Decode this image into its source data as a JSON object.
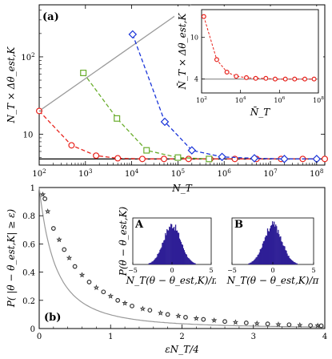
{
  "chart_data": [
    {
      "panel_label": "(a)",
      "type": "line",
      "xscale": "log",
      "yscale": "log",
      "xlabel": "N_T",
      "ylabel": "N_T × Δθ_est,K",
      "xlim": [
        100,
        150000000
      ],
      "ylim": [
        4,
        470
      ],
      "x_ticks": [
        {
          "value": 100,
          "base": "10",
          "exp": "2"
        },
        {
          "value": 1000,
          "base": "10",
          "exp": "3"
        },
        {
          "value": 10000,
          "base": "10",
          "exp": "4"
        },
        {
          "value": 100000,
          "base": "10",
          "exp": "5"
        },
        {
          "value": 1000000,
          "base": "10",
          "exp": "6"
        },
        {
          "value": 10000000,
          "base": "10",
          "exp": "7"
        },
        {
          "value": 100000000,
          "base": "10",
          "exp": "8"
        }
      ],
      "y_ticks": [
        {
          "value": 10,
          "base": "10",
          "exp": ""
        },
        {
          "value": 100,
          "base": "10",
          "exp": "2"
        }
      ],
      "reference_lines": [
        {
          "kind": "horizontal",
          "y": 4.8,
          "color": "#000000"
        },
        {
          "kind": "diagonal",
          "points": [
            [
              100,
              20
            ],
            [
              190000,
              470
            ]
          ],
          "color": "#9a9a9a"
        }
      ],
      "series": [
        {
          "color": "#e8221c",
          "marker": "circle",
          "x": [
            100,
            500,
            1700,
            5000,
            17000,
            50000,
            170000,
            500000,
            1700000,
            5000000,
            17000000,
            50000000,
            150000000
          ],
          "y": [
            20,
            7.2,
            5.3,
            4.9,
            4.8,
            4.8,
            4.8,
            4.8,
            4.8,
            4.8,
            4.8,
            4.8,
            4.8
          ]
        },
        {
          "color": "#6aad2d",
          "marker": "square",
          "x": [
            900,
            4800,
            21000,
            100000,
            470000
          ],
          "y": [
            62,
            16,
            6.2,
            5.0,
            4.8
          ]
        },
        {
          "color": "#1a35d9",
          "marker": "diamond",
          "x": [
            10500,
            52000,
            200000,
            900000,
            4500000,
            20000000,
            100000000
          ],
          "y": [
            195,
            14.5,
            6.2,
            5.1,
            4.9,
            4.8,
            4.8
          ]
        }
      ]
    },
    {
      "panel_label": "inset",
      "type": "line",
      "xscale": "log",
      "yscale": "linear",
      "xlabel": "N̄_T",
      "ylabel": "N̄_T × Δθ_est,K",
      "xlim": [
        100,
        100000000
      ],
      "ylim": [
        2,
        14
      ],
      "x_ticks": [
        {
          "value": 100,
          "base": "10",
          "exp": "2"
        },
        {
          "value": 10000,
          "base": "10",
          "exp": "4"
        },
        {
          "value": 1000000,
          "base": "10",
          "exp": "6"
        },
        {
          "value": 100000000,
          "base": "10",
          "exp": "8"
        }
      ],
      "y_ticks": [
        {
          "value": 4,
          "label": "4"
        },
        {
          "value": 10,
          "label": "10"
        }
      ],
      "reference_lines": [
        {
          "kind": "horizontal",
          "y": 4,
          "color": "#888888"
        }
      ],
      "series": [
        {
          "color": "#e8221c",
          "marker": "circle",
          "x": [
            130,
            600,
            2000,
            6000,
            20000,
            60000,
            200000,
            600000,
            2000000,
            6000000,
            20000000,
            60000000
          ],
          "y": [
            13,
            6.8,
            5.0,
            4.4,
            4.2,
            4.1,
            4.1,
            4.0,
            4.0,
            4.0,
            4.0,
            4.0
          ]
        }
      ]
    },
    {
      "panel_label": "(b)",
      "type": "scatter",
      "xlabel": "εN_T/4",
      "ylabel": "P( |θ − θ_est,K| ≥ ε)",
      "xlim": [
        0,
        4
      ],
      "ylim": [
        0,
        1
      ],
      "x_ticks": [
        "0",
        "1",
        "2",
        "3",
        "4"
      ],
      "y_ticks": [
        "0",
        "0.2",
        "0.4",
        "0.6",
        "0.8",
        "1"
      ],
      "fit_curve": {
        "color": "#999999",
        "form": "1/(1+2.2x)^2"
      },
      "series": [
        {
          "marker": "circle",
          "x": [
            0.08,
            0.2,
            0.35,
            0.5,
            0.7,
            0.9,
            1.1,
            1.3,
            1.55,
            1.8,
            2.05,
            2.3,
            2.6,
            2.9,
            3.2,
            3.5,
            3.8,
            3.95
          ],
          "y": [
            0.92,
            0.71,
            0.56,
            0.44,
            0.33,
            0.26,
            0.2,
            0.16,
            0.13,
            0.1,
            0.08,
            0.065,
            0.05,
            0.04,
            0.033,
            0.027,
            0.022,
            0.02
          ]
        },
        {
          "marker": "star",
          "x": [
            0.05,
            0.12,
            0.28,
            0.42,
            0.6,
            0.8,
            1.0,
            1.2,
            1.45,
            1.7,
            1.95,
            2.2,
            2.45,
            2.75,
            3.05,
            3.35,
            3.65,
            3.9
          ],
          "y": [
            0.95,
            0.83,
            0.63,
            0.5,
            0.38,
            0.29,
            0.23,
            0.18,
            0.14,
            0.11,
            0.09,
            0.072,
            0.058,
            0.045,
            0.036,
            0.029,
            0.024,
            0.021
          ]
        }
      ]
    },
    {
      "panel_label": "A",
      "type": "histogram",
      "color": "#2e1f96",
      "xlabel": "N_T(θ − θ_est,K)/π",
      "ylabel": "P(θ − θ_est,K)",
      "xlim": [
        -5,
        5
      ],
      "x_ticks": [
        "−5",
        "0",
        "5"
      ],
      "center": 0,
      "width": 1.1
    },
    {
      "panel_label": "B",
      "type": "histogram",
      "color": "#2e1f96",
      "xlabel": "N_T(θ − θ_est,K)/π",
      "xlim": [
        -5,
        5
      ],
      "x_ticks": [
        "−5",
        "0",
        "5"
      ],
      "center": 0,
      "width": 1.1
    }
  ]
}
